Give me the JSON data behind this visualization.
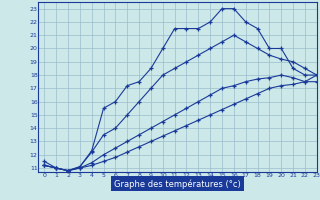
{
  "xlabel": "Graphe des températures (°c)",
  "x_values": [
    0,
    1,
    2,
    3,
    4,
    5,
    6,
    7,
    8,
    9,
    10,
    11,
    12,
    13,
    14,
    15,
    16,
    17,
    18,
    19,
    20,
    21,
    22,
    23
  ],
  "line1": [
    11.5,
    11.0,
    10.8,
    11.1,
    12.3,
    15.5,
    16.0,
    17.2,
    17.5,
    18.5,
    20.0,
    21.5,
    21.5,
    21.5,
    22.0,
    23.0,
    23.0,
    22.0,
    21.5,
    20.0,
    20.0,
    18.5,
    18.0,
    18.0
  ],
  "line2": [
    11.2,
    11.0,
    10.8,
    11.1,
    12.2,
    13.5,
    14.0,
    15.0,
    16.0,
    17.0,
    18.0,
    18.5,
    19.0,
    19.5,
    20.0,
    20.5,
    21.0,
    20.5,
    20.0,
    19.5,
    19.2,
    19.0,
    18.5,
    18.0
  ],
  "line3": [
    11.2,
    11.0,
    10.8,
    11.0,
    11.4,
    12.0,
    12.5,
    13.0,
    13.5,
    14.0,
    14.5,
    15.0,
    15.5,
    16.0,
    16.5,
    17.0,
    17.2,
    17.5,
    17.7,
    17.8,
    18.0,
    17.8,
    17.5,
    18.0
  ],
  "line4": [
    11.2,
    11.0,
    10.8,
    11.0,
    11.2,
    11.5,
    11.8,
    12.2,
    12.6,
    13.0,
    13.4,
    13.8,
    14.2,
    14.6,
    15.0,
    15.4,
    15.8,
    16.2,
    16.6,
    17.0,
    17.2,
    17.3,
    17.5,
    17.5
  ],
  "line_color": "#1a3a9a",
  "bg_color": "#cce8e8",
  "grid_color": "#9abccc",
  "xlim": [
    -0.5,
    23
  ],
  "ylim": [
    10.7,
    23.5
  ],
  "xticks": [
    0,
    1,
    2,
    3,
    4,
    5,
    6,
    7,
    8,
    9,
    10,
    11,
    12,
    13,
    14,
    15,
    16,
    17,
    18,
    19,
    20,
    21,
    22,
    23
  ],
  "yticks": [
    11,
    12,
    13,
    14,
    15,
    16,
    17,
    18,
    19,
    20,
    21,
    22,
    23
  ],
  "xlabel_color": "#ffffff",
  "xlabel_bg": "#1a3a9a"
}
